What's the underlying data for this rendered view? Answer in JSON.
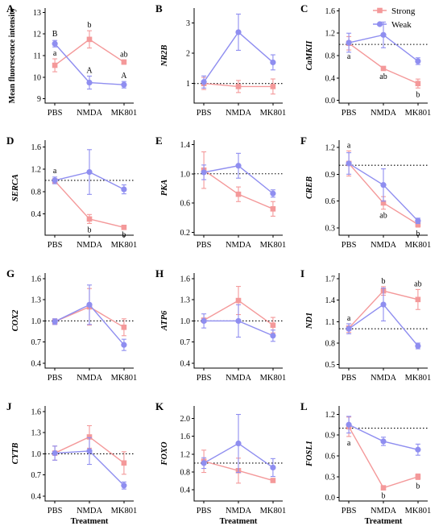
{
  "colors": {
    "strong": "#f4999a",
    "weak": "#8f8ef0"
  },
  "legend": {
    "title": "",
    "items": [
      {
        "label": "Strong",
        "color": "#f4999a"
      },
      {
        "label": "Weak",
        "color": "#8f8ef0"
      }
    ]
  },
  "chart_data": [
    {
      "panel": "A",
      "type": "line",
      "ylabel": "Mean fluorescence intensity",
      "ylabel_italic": false,
      "xlabel": "",
      "categories": [
        "PBS",
        "NMDA",
        "MK801"
      ],
      "ylim": [
        8.8,
        13.2
      ],
      "yticks": [
        "9",
        "10",
        "11",
        "12",
        "13"
      ],
      "ref_line": null,
      "series": [
        {
          "name": "Strong",
          "values": [
            10.55,
            11.75,
            10.7
          ],
          "errors": [
            0.3,
            0.4,
            0.1
          ],
          "labels": [
            "a",
            "b",
            "ab"
          ]
        },
        {
          "name": "Weak",
          "values": [
            11.55,
            9.75,
            9.65
          ],
          "errors": [
            0.15,
            0.3,
            0.15
          ],
          "labels": [
            "B",
            "A",
            "A"
          ]
        }
      ]
    },
    {
      "panel": "B",
      "type": "line",
      "ylabel": "NR2B",
      "ylabel_italic": true,
      "xlabel": "",
      "categories": [
        "PBS",
        "NMDA",
        "MK801"
      ],
      "ylim": [
        0.35,
        3.5
      ],
      "yticks": [
        "1",
        "2",
        "3"
      ],
      "ref_line": 1,
      "series": [
        {
          "name": "Strong",
          "values": [
            1.0,
            0.9,
            0.9
          ],
          "errors": [
            0.2,
            0.2,
            0.25
          ],
          "labels": [
            "",
            "",
            ""
          ]
        },
        {
          "name": "Weak",
          "values": [
            1.05,
            2.7,
            1.7
          ],
          "errors": [
            0.2,
            0.6,
            0.25
          ],
          "labels": [
            "",
            "",
            ""
          ]
        }
      ]
    },
    {
      "panel": "C",
      "type": "line",
      "ylabel": "CaMKII",
      "ylabel_italic": true,
      "xlabel": "",
      "categories": [
        "PBS",
        "NMDA",
        "MK801"
      ],
      "ylim": [
        -0.05,
        1.65
      ],
      "yticks": [
        "0.0",
        "0.4",
        "0.8",
        "1.2",
        "1.6"
      ],
      "ref_line": 1,
      "series": [
        {
          "name": "Strong",
          "values": [
            1.02,
            0.57,
            0.3
          ],
          "errors": [
            0.12,
            0.03,
            0.08
          ],
          "labels": [
            "a",
            "ab",
            "b"
          ]
        },
        {
          "name": "Weak",
          "values": [
            1.03,
            1.17,
            0.7
          ],
          "errors": [
            0.17,
            0.23,
            0.06
          ],
          "labels": [
            "",
            "",
            ""
          ]
        }
      ]
    },
    {
      "panel": "D",
      "type": "line",
      "ylabel": "SERCA",
      "ylabel_italic": true,
      "xlabel": "",
      "categories": [
        "PBS",
        "NMDA",
        "MK801"
      ],
      "ylim": [
        0.02,
        1.72
      ],
      "yticks": [
        "0.4",
        "0.8",
        "1.2",
        "1.6"
      ],
      "ref_line": 1,
      "series": [
        {
          "name": "Strong",
          "values": [
            0.99,
            0.31,
            0.16
          ],
          "errors": [
            0.04,
            0.08,
            0.02
          ],
          "labels": [
            "a",
            "b",
            "b"
          ]
        },
        {
          "name": "Weak",
          "values": [
            1.0,
            1.15,
            0.84
          ],
          "errors": [
            0.06,
            0.4,
            0.08
          ],
          "labels": [
            "",
            "",
            ""
          ]
        }
      ]
    },
    {
      "panel": "E",
      "type": "line",
      "ylabel": "PKA",
      "ylabel_italic": true,
      "xlabel": "",
      "categories": [
        "PBS",
        "NMDA",
        "MK801"
      ],
      "ylim": [
        0.16,
        1.46
      ],
      "yticks": [
        "0.2",
        "0.6",
        "1.0",
        "1.4"
      ],
      "ref_line": 1,
      "series": [
        {
          "name": "Strong",
          "values": [
            1.05,
            0.72,
            0.52
          ],
          "errors": [
            0.25,
            0.1,
            0.1
          ],
          "labels": [
            "",
            "",
            ""
          ]
        },
        {
          "name": "Weak",
          "values": [
            1.02,
            1.11,
            0.73
          ],
          "errors": [
            0.1,
            0.17,
            0.05
          ],
          "labels": [
            "",
            "",
            ""
          ]
        }
      ]
    },
    {
      "panel": "F",
      "type": "line",
      "ylabel": "CREB",
      "ylabel_italic": true,
      "xlabel": "",
      "categories": [
        "PBS",
        "NMDA",
        "MK801"
      ],
      "ylim": [
        0.22,
        1.28
      ],
      "yticks": [
        "0.3",
        "0.6",
        "0.9",
        "1.2"
      ],
      "ref_line": 1,
      "series": [
        {
          "name": "Strong",
          "values": [
            1.02,
            0.58,
            0.34
          ],
          "errors": [
            0.14,
            0.07,
            0.03
          ],
          "labels": [
            "a",
            "ab",
            "b"
          ]
        },
        {
          "name": "Weak",
          "values": [
            1.02,
            0.78,
            0.38
          ],
          "errors": [
            0.12,
            0.18,
            0.03
          ],
          "labels": [
            "",
            "",
            ""
          ]
        }
      ]
    },
    {
      "panel": "G",
      "type": "line",
      "ylabel": "COX2",
      "ylabel_italic": true,
      "xlabel": "",
      "categories": [
        "PBS",
        "NMDA",
        "MK801"
      ],
      "ylim": [
        0.33,
        1.68
      ],
      "yticks": [
        "0.4",
        "0.7",
        "1.0",
        "1.3",
        "1.6"
      ],
      "ref_line": 1,
      "series": [
        {
          "name": "Strong",
          "values": [
            0.99,
            1.2,
            0.91
          ],
          "errors": [
            0.04,
            0.26,
            0.12
          ],
          "labels": [
            "",
            "",
            ""
          ]
        },
        {
          "name": "Weak",
          "values": [
            0.99,
            1.23,
            0.66
          ],
          "errors": [
            0.04,
            0.28,
            0.08
          ],
          "labels": [
            "",
            "",
            ""
          ]
        }
      ]
    },
    {
      "panel": "H",
      "type": "line",
      "ylabel": "ATP6",
      "ylabel_italic": true,
      "xlabel": "",
      "categories": [
        "PBS",
        "NMDA",
        "MK801"
      ],
      "ylim": [
        0.33,
        1.68
      ],
      "yticks": [
        "0.4",
        "0.7",
        "1.0",
        "1.3",
        "1.6"
      ],
      "ref_line": 1,
      "series": [
        {
          "name": "Strong",
          "values": [
            1.01,
            1.29,
            0.94
          ],
          "errors": [
            0.03,
            0.2,
            0.11
          ],
          "labels": [
            "",
            "",
            ""
          ]
        },
        {
          "name": "Weak",
          "values": [
            1.0,
            1.0,
            0.79
          ],
          "errors": [
            0.1,
            0.23,
            0.08
          ],
          "labels": [
            "",
            "",
            ""
          ]
        }
      ]
    },
    {
      "panel": "I",
      "type": "line",
      "ylabel": "ND1",
      "ylabel_italic": true,
      "xlabel": "",
      "categories": [
        "PBS",
        "NMDA",
        "MK801"
      ],
      "ylim": [
        0.45,
        1.78
      ],
      "yticks": [
        "0.5",
        "0.8",
        "1.1",
        "1.4",
        "1.7"
      ],
      "ref_line": 1,
      "series": [
        {
          "name": "Strong",
          "values": [
            1.01,
            1.53,
            1.41
          ],
          "errors": [
            0.06,
            0.06,
            0.14
          ],
          "labels": [
            "a",
            "b",
            "ab"
          ]
        },
        {
          "name": "Weak",
          "values": [
            1.0,
            1.34,
            0.76
          ],
          "errors": [
            0.07,
            0.23,
            0.04
          ],
          "labels": [
            "",
            "",
            ""
          ]
        }
      ]
    },
    {
      "panel": "J",
      "type": "line",
      "ylabel": "CYTB",
      "ylabel_italic": true,
      "xlabel": "Treatment",
      "categories": [
        "PBS",
        "NMDA",
        "MK801"
      ],
      "ylim": [
        0.33,
        1.68
      ],
      "yticks": [
        "0.4",
        "0.7",
        "1.0",
        "1.3",
        "1.6"
      ],
      "ref_line": 1,
      "series": [
        {
          "name": "Strong",
          "values": [
            1.01,
            1.24,
            0.87
          ],
          "errors": [
            0.1,
            0.16,
            0.16
          ],
          "labels": [
            "",
            "",
            ""
          ]
        },
        {
          "name": "Weak",
          "values": [
            1.01,
            1.04,
            0.55
          ],
          "errors": [
            0.1,
            0.19,
            0.05
          ],
          "labels": [
            "",
            "",
            ""
          ]
        }
      ]
    },
    {
      "panel": "K",
      "type": "line",
      "ylabel": "FOXO",
      "ylabel_italic": true,
      "xlabel": "Treatment",
      "categories": [
        "PBS",
        "NMDA",
        "MK801"
      ],
      "ylim": [
        0.15,
        2.28
      ],
      "yticks": [
        "0.4",
        "0.8",
        "1.2",
        "1.6",
        "2.0"
      ],
      "ref_line": 1,
      "series": [
        {
          "name": "Strong",
          "values": [
            1.04,
            0.83,
            0.61
          ],
          "errors": [
            0.25,
            0.28,
            0.03
          ],
          "labels": [
            "",
            "",
            ""
          ]
        },
        {
          "name": "Weak",
          "values": [
            1.0,
            1.44,
            0.9
          ],
          "errors": [
            0.12,
            0.65,
            0.2
          ],
          "labels": [
            "",
            "",
            ""
          ]
        }
      ]
    },
    {
      "panel": "L",
      "type": "line",
      "ylabel": "FOSL1",
      "ylabel_italic": true,
      "xlabel": "Treatment",
      "categories": [
        "PBS",
        "NMDA",
        "MK801"
      ],
      "ylim": [
        -0.05,
        1.32
      ],
      "yticks": [
        "0.0",
        "0.3",
        "0.6",
        "0.9",
        "1.2"
      ],
      "ref_line": 1,
      "series": [
        {
          "name": "Strong",
          "values": [
            1.02,
            0.14,
            0.3
          ],
          "errors": [
            0.14,
            0.02,
            0.04
          ],
          "labels": [
            "a",
            "b",
            "b"
          ]
        },
        {
          "name": "Weak",
          "values": [
            1.05,
            0.81,
            0.69
          ],
          "errors": [
            0.12,
            0.06,
            0.08
          ],
          "labels": [
            "",
            "",
            ""
          ]
        }
      ]
    }
  ]
}
